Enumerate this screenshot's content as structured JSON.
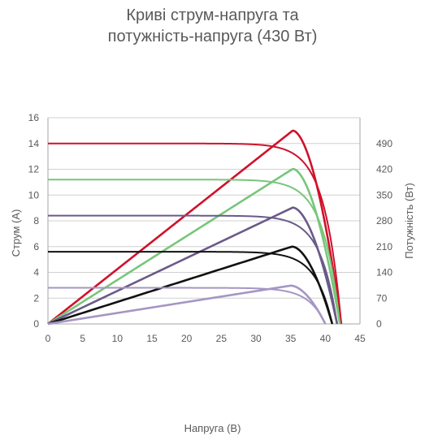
{
  "chart_data": {
    "type": "line",
    "title_line1": "Криві струм-напруга та",
    "title_line2": "потужність-напруга (430 Вт)",
    "xlabel": "Напруга (В)",
    "ylabel_left": "Струм (A)",
    "ylabel_right": "Потужність (Вт)",
    "xlim": [
      0,
      45
    ],
    "ylim_left": [
      0,
      16
    ],
    "ylim_right": [
      0,
      560
    ],
    "x_ticks": [
      0,
      5,
      10,
      15,
      20,
      25,
      30,
      35,
      40,
      45
    ],
    "y_left_ticks": [
      0,
      2,
      4,
      6,
      8,
      10,
      12,
      14,
      16
    ],
    "y_right_ticks": [
      0,
      70,
      140,
      210,
      280,
      350,
      420,
      490
    ],
    "grid": "horizontal",
    "series": [
      {
        "color": "#d0112b",
        "isc": 14.0,
        "voc": 42.3,
        "pmax": 525,
        "vmp": 35.3
      },
      {
        "color": "#78c67a",
        "isc": 11.2,
        "voc": 42.1,
        "pmax": 421,
        "vmp": 35.3
      },
      {
        "color": "#6a5a88",
        "isc": 8.4,
        "voc": 41.7,
        "pmax": 316,
        "vmp": 35.3
      },
      {
        "color": "#111111",
        "isc": 5.6,
        "voc": 41.0,
        "pmax": 210,
        "vmp": 35.2
      },
      {
        "color": "#a596c4",
        "isc": 2.8,
        "voc": 40.0,
        "pmax": 104,
        "vmp": 35.0
      }
    ]
  }
}
